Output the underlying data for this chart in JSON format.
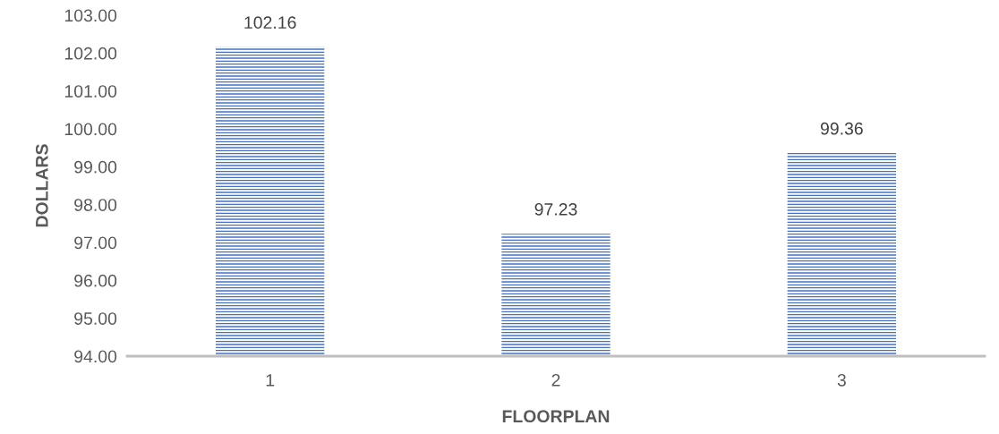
{
  "chart_data": {
    "type": "bar",
    "xlabel": "FLOORPLAN",
    "ylabel": "DOLLARS",
    "categories": [
      "1",
      "2",
      "3"
    ],
    "values": [
      102.16,
      97.23,
      99.36
    ],
    "color": "#4472c4",
    "ylim": [
      94,
      103
    ],
    "yticks": [
      {
        "value": 94,
        "label": "94.00"
      },
      {
        "value": 95,
        "label": "95.00"
      },
      {
        "value": 96,
        "label": "96.00"
      },
      {
        "value": 97,
        "label": "97.00"
      },
      {
        "value": 98,
        "label": "98.00"
      },
      {
        "value": 99,
        "label": "99.00"
      },
      {
        "value": 100,
        "label": "100.00"
      },
      {
        "value": 101,
        "label": "101.00"
      },
      {
        "value": 102,
        "label": "102.00"
      },
      {
        "value": 103,
        "label": "103.00"
      }
    ],
    "data_labels": true,
    "grid": false,
    "legend": false
  }
}
